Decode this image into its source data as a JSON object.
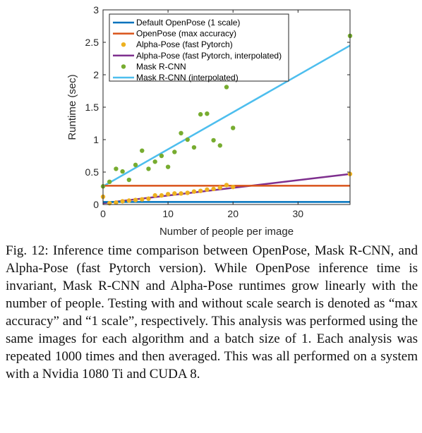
{
  "chart_data": {
    "type": "scatter",
    "xlabel": "Number of people per image",
    "ylabel": "Runtime (sec)",
    "xlim": [
      0,
      38
    ],
    "ylim": [
      0,
      3
    ],
    "xticks": [
      "0",
      "10",
      "20",
      "30"
    ],
    "yticks": [
      "0",
      "0.5",
      "1",
      "1.5",
      "2",
      "2.5",
      "3"
    ],
    "grid": false,
    "legend_position": "top-right",
    "series": [
      {
        "name": "Default OpenPose (1 scale)",
        "kind": "line",
        "color": "#0072BD",
        "x": [
          0,
          38
        ],
        "y": [
          0.04,
          0.04
        ]
      },
      {
        "name": "OpenPose (max accuracy)",
        "kind": "line",
        "color": "#D95319",
        "x": [
          0,
          38
        ],
        "y": [
          0.29,
          0.29
        ]
      },
      {
        "name": "Alpha-Pose (fast Pytorch)",
        "kind": "scatter",
        "color": "#EDB120",
        "x": [
          0,
          1,
          2,
          3,
          4,
          5,
          6,
          7,
          8,
          9,
          10,
          11,
          12,
          13,
          14,
          15,
          16,
          17,
          18,
          19,
          20,
          38
        ],
        "y": [
          0.12,
          0.02,
          0.03,
          0.05,
          0.06,
          0.07,
          0.08,
          0.09,
          0.14,
          0.14,
          0.16,
          0.17,
          0.17,
          0.18,
          0.2,
          0.21,
          0.23,
          0.24,
          0.26,
          0.3,
          0.27,
          0.47
        ]
      },
      {
        "name": "Alpha-Pose (fast Pytorch, interpolated)",
        "kind": "line",
        "color": "#7E2F8E",
        "x": [
          0,
          38
        ],
        "y": [
          0.02,
          0.47
        ]
      },
      {
        "name": "Mask R-CNN",
        "kind": "scatter",
        "color": "#77AC30",
        "x": [
          0,
          1,
          2,
          3,
          4,
          5,
          6,
          7,
          8,
          9,
          10,
          11,
          12,
          13,
          14,
          15,
          16,
          17,
          18,
          19,
          20,
          38
        ],
        "y": [
          0.28,
          0.35,
          0.55,
          0.51,
          0.38,
          0.61,
          0.83,
          0.55,
          0.66,
          0.75,
          0.58,
          0.81,
          1.1,
          1.0,
          0.88,
          1.39,
          1.4,
          0.99,
          0.91,
          1.81,
          1.18,
          2.6
        ]
      },
      {
        "name": "Mask R-CNN (interpolated)",
        "kind": "line",
        "color": "#4DBEEE",
        "x": [
          0,
          38
        ],
        "y": [
          0.28,
          2.45
        ]
      }
    ]
  },
  "caption": "Fig. 12: Inference time comparison between OpenPose, Mask R-CNN, and Alpha-Pose (fast Pytorch version). While OpenPose inference time is invariant, Mask R-CNN and Alpha-Pose runtimes grow linearly with the number of people. Testing with and without scale search is denoted as “max accuracy” and “1 scale”, respectively. This analysis was performed using the same images for each algorithm and a batch size of 1. Each analysis was repeated 1000 times and then averaged. This was all performed on a system with a Nvidia 1080 Ti and CUDA 8."
}
